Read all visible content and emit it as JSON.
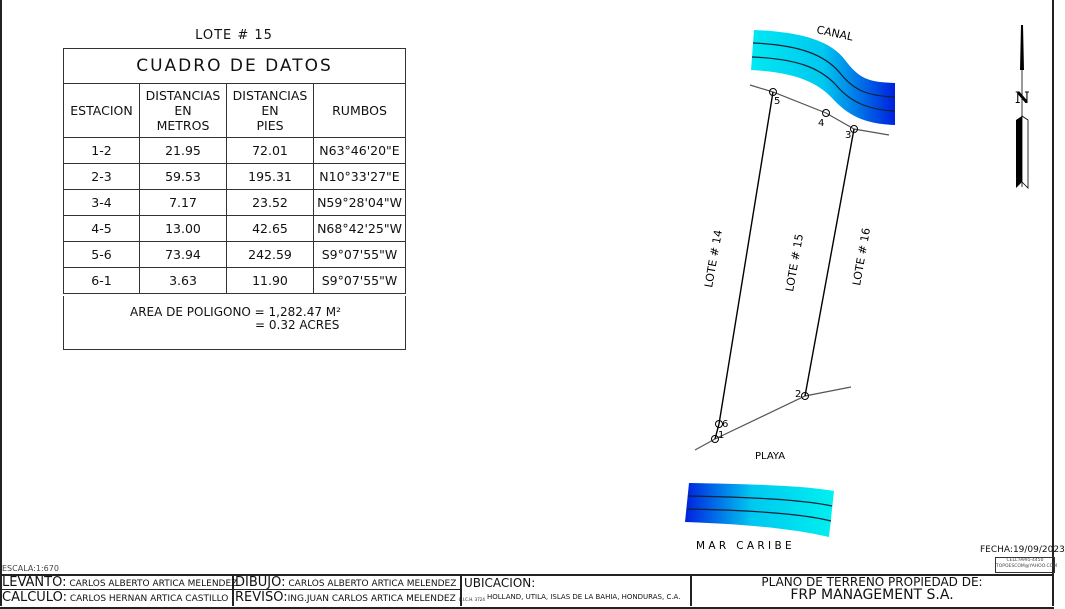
{
  "lote_title": "LOTE # 15",
  "table": {
    "title": "CUADRO DE DATOS",
    "headers": [
      "ESTACION",
      "DISTANCIAS EN METROS",
      "DISTANCIAS EN PIES",
      "RUMBOS"
    ],
    "header_lines": [
      [
        "ESTACION"
      ],
      [
        "DISTANCIAS",
        "EN",
        "METROS"
      ],
      [
        "DISTANCIAS",
        "EN",
        "PIES"
      ],
      [
        "RUMBOS"
      ]
    ],
    "rows": [
      [
        "1-2",
        "21.95",
        "72.01",
        "N63°46'20\"E"
      ],
      [
        "2-3",
        "59.53",
        "195.31",
        "N10°33'27\"E"
      ],
      [
        "3-4",
        "7.17",
        "23.52",
        "N59°28'04\"W"
      ],
      [
        "4-5",
        "13.00",
        "42.65",
        "N68°42'25\"W"
      ],
      [
        "5-6",
        "73.94",
        "242.59",
        "S9°07'55\"W"
      ],
      [
        "6-1",
        "3.63",
        "11.90",
        "S9°07'55\"W"
      ]
    ],
    "area_line1": "AREA DE POLIGONO = 1,282.47 M²",
    "area_line2": "= 0.32 ACRES"
  },
  "drawing": {
    "canal_label": "CANAL",
    "playa_label": "PLAYA",
    "sea_label": "M A R   C A R I B E",
    "north_label": "N",
    "lots": [
      "LOTE # 14",
      "LOTE # 15",
      "LOTE # 16"
    ],
    "points": [
      "1",
      "2",
      "3",
      "4",
      "5",
      "6"
    ],
    "water_colors": [
      "#00e5f0",
      "#0018e0"
    ]
  },
  "footer": {
    "escala": "ESCALA:1:670",
    "fecha": "FECHA:19/09/2023",
    "contact_line1": "CELL:9995-4450",
    "contact_line2": "TOPOESCOM@YAHOO.COM",
    "levanto_label": "LEVANTO:",
    "levanto_value": "CARLOS ALBERTO ARTICA MELENDEZ",
    "calculo_label": "CALCULO:",
    "calculo_value": "CARLOS HERNAN ARTICA CASTILLO",
    "dibujo_label": "DIBUJO:",
    "dibujo_value": "CARLOS ALBERTO ARTICA MELENDEZ",
    "reviso_label": "REVISO:",
    "reviso_value": "ING.JUAN CARLOS ARTICA MELENDEZ",
    "reviso_reg": "C.I.C.H. 3724",
    "ubicacion_label": "UBICACION:",
    "ubicacion_value": "HOLLAND, UTILA, ISLAS DE LA BAHIA, HONDURAS, C.A.",
    "plano_line1": "PLANO DE TERRENO PROPIEDAD DE:",
    "plano_line2": "FRP MANAGEMENT S.A."
  }
}
